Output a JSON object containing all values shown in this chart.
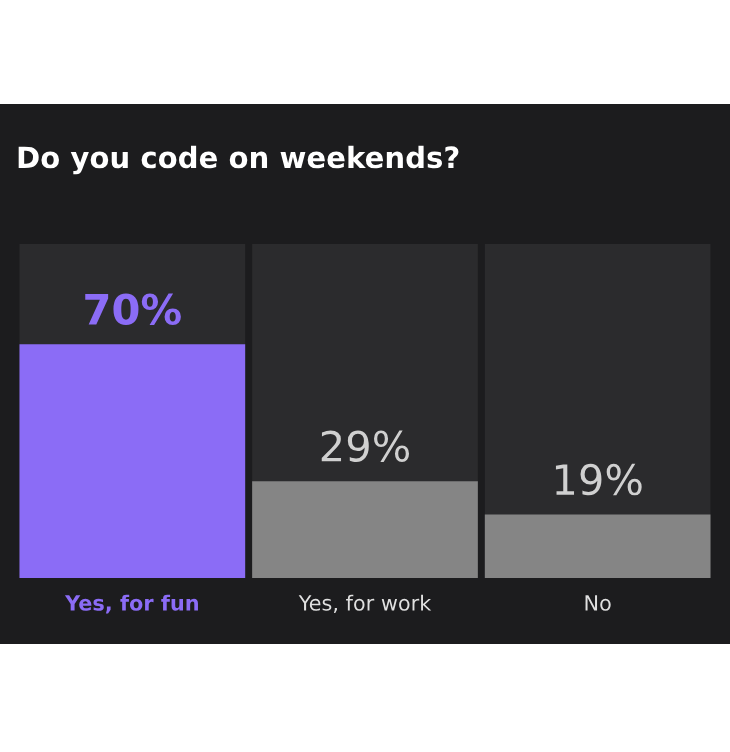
{
  "chart_data": {
    "type": "bar",
    "title": "Do you code on weekends?",
    "categories": [
      "Yes, for fun",
      "Yes, for work",
      "No"
    ],
    "values": [
      70,
      29,
      19
    ],
    "colors": [
      "#8b6cf6",
      "#858585",
      "#858585"
    ],
    "value_labels": [
      "70%",
      "29%",
      "19%"
    ],
    "tick_labels": "x",
    "grid": false,
    "legend": false
  }
}
